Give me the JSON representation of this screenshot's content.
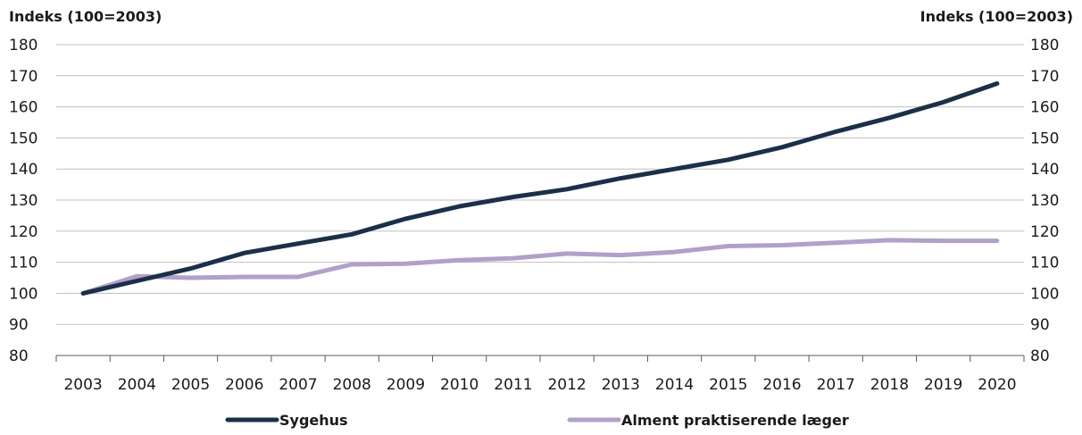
{
  "chart_data": {
    "type": "line",
    "title": "",
    "ylabel_left": "Indeks (100=2003)",
    "ylabel_right": "Indeks (100=2003)",
    "xlabel": "",
    "ylim": [
      80,
      180
    ],
    "yticks": [
      80,
      90,
      100,
      110,
      120,
      130,
      140,
      150,
      160,
      170,
      180
    ],
    "categories": [
      "2003",
      "2004",
      "2005",
      "2006",
      "2007",
      "2008",
      "2009",
      "2010",
      "2011",
      "2012",
      "2013",
      "2014",
      "2015",
      "2016",
      "2017",
      "2018",
      "2019",
      "2020"
    ],
    "grid": true,
    "legend_position": "bottom",
    "series": [
      {
        "name": "Sygehus",
        "color": "#1b3048",
        "values": [
          100,
          104,
          108,
          113,
          116,
          119,
          124,
          128,
          131,
          133.5,
          137,
          140,
          143,
          147,
          152,
          156.5,
          161.5,
          167.5
        ]
      },
      {
        "name": "Alment praktiserende læger",
        "color": "#b1a0c9",
        "values": [
          100,
          105.5,
          105,
          105.3,
          105.3,
          109.3,
          109.5,
          110.7,
          111.3,
          112.8,
          112.3,
          113.3,
          115.2,
          115.5,
          116.3,
          117.1,
          116.9,
          116.9
        ]
      }
    ]
  }
}
